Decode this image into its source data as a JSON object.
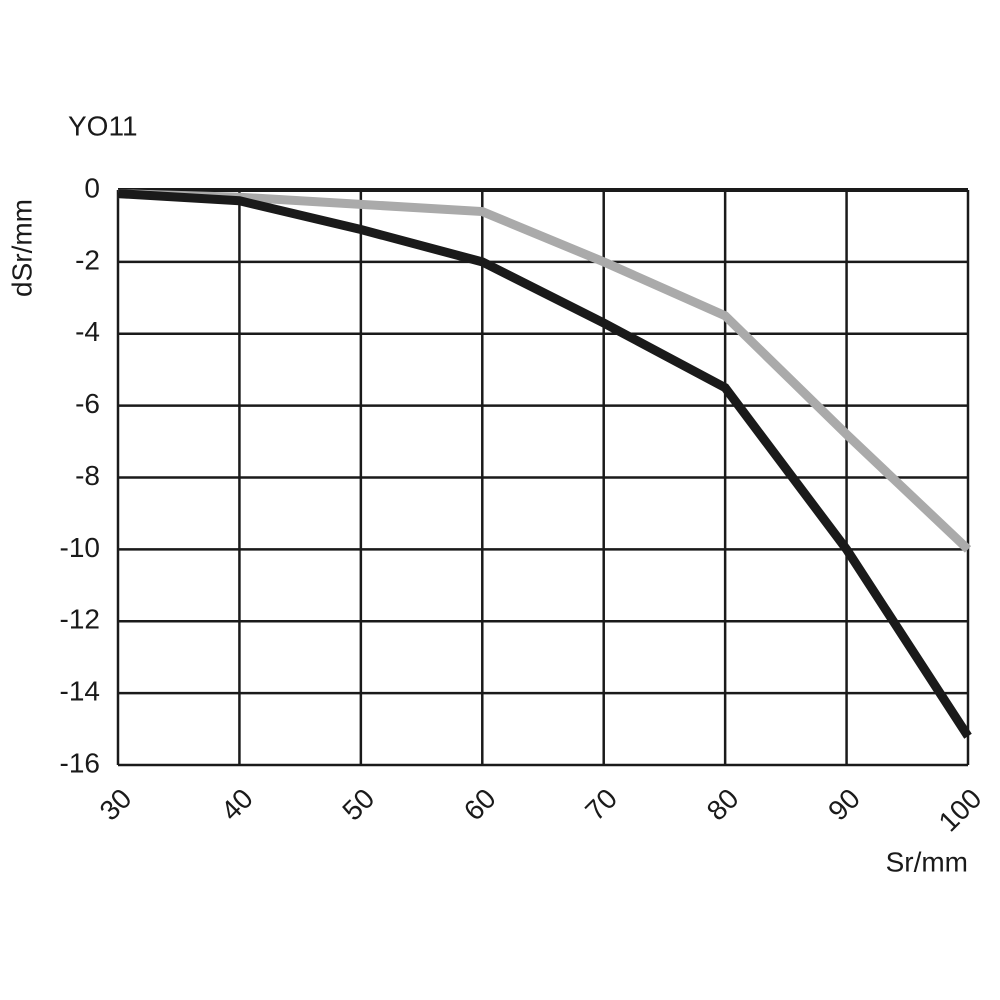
{
  "chart_data": {
    "type": "line",
    "title": "YO11",
    "x_label": "Sr/mm",
    "y_label": "dSr/mm",
    "x": [
      30,
      40,
      50,
      60,
      70,
      80,
      90,
      100
    ],
    "series": [
      {
        "color": "#1a1a1a",
        "values": [
          -0.1,
          -0.3,
          -1.1,
          -2,
          -3.7,
          -5.5,
          -10,
          -15.2
        ]
      },
      {
        "color": "#aaaaaa",
        "values": [
          -0.1,
          -0.2,
          -0.4,
          -0.6,
          -2,
          -3.5,
          -6.8,
          -10
        ]
      }
    ],
    "xlim": [
      30,
      100
    ],
    "xticks": [
      30,
      40,
      50,
      60,
      70,
      80,
      90,
      100
    ],
    "ylim": [
      -16,
      0
    ],
    "yticks": [
      0,
      -2,
      -4,
      -6,
      -8,
      -10,
      -12,
      -14,
      -16
    ],
    "grid": true
  }
}
